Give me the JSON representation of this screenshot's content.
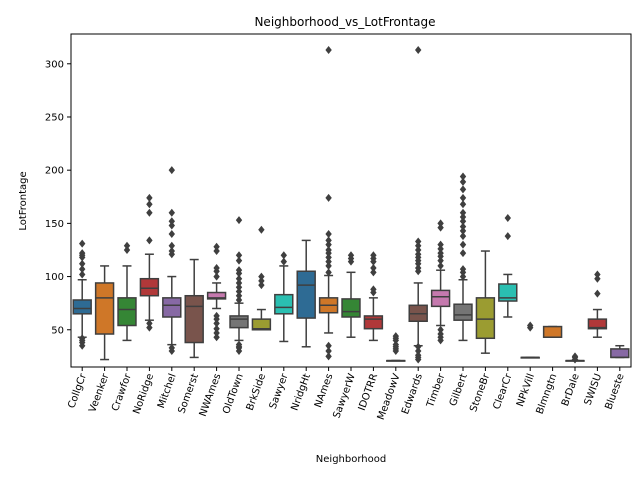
{
  "chart_data": {
    "type": "boxplot",
    "title": "Neighborhood_vs_LotFrontage",
    "xlabel": "Neighborhood",
    "ylabel": "LotFrontage",
    "ylim": [
      15,
      328
    ],
    "yticks": [
      50,
      100,
      150,
      200,
      250,
      300
    ],
    "grid": false,
    "legend": "none",
    "categories": [
      {
        "name": "CollgCr",
        "color": "#3274a1",
        "min": 43,
        "q1": 65,
        "median": 70,
        "q3": 78,
        "max": 97,
        "outliers": [
          35,
          38,
          40,
          42,
          102,
          107,
          112,
          118,
          120,
          122,
          131
        ]
      },
      {
        "name": "Veenker",
        "color": "#e1812c",
        "min": 22,
        "q1": 46,
        "median": 80,
        "q3": 94,
        "max": 110,
        "outliers": []
      },
      {
        "name": "Crawfor",
        "color": "#3a923a",
        "min": 40,
        "q1": 54,
        "median": 69,
        "q3": 80,
        "max": 110,
        "outliers": [
          125,
          129
        ]
      },
      {
        "name": "NoRidge",
        "color": "#c03d3e",
        "min": 59,
        "q1": 82,
        "median": 89,
        "q3": 98,
        "max": 121,
        "outliers": [
          52,
          56,
          134,
          160,
          168,
          174
        ]
      },
      {
        "name": "Mitchel",
        "color": "#9372b2",
        "min": 36,
        "q1": 62,
        "median": 73,
        "q3": 80,
        "max": 100,
        "outliers": [
          30,
          33,
          121,
          124,
          129,
          140,
          148,
          152,
          160,
          200
        ]
      },
      {
        "name": "Somerst",
        "color": "#845b53",
        "min": 24,
        "q1": 38,
        "median": 72,
        "q3": 82,
        "max": 116,
        "outliers": []
      },
      {
        "name": "NWAmes",
        "color": "#d684bd",
        "min": 70,
        "q1": 79,
        "median": 80,
        "q3": 85,
        "max": 94,
        "outliers": [
          43,
          47,
          51,
          56,
          60,
          63,
          100,
          105,
          108,
          124,
          128
        ]
      },
      {
        "name": "OldTown",
        "color": "#7f7f7f",
        "min": 40,
        "q1": 52,
        "median": 60,
        "q3": 63,
        "max": 75,
        "outliers": [
          30,
          33,
          34,
          36,
          78,
          82,
          86,
          90,
          94,
          98,
          103,
          106,
          115,
          120,
          153
        ]
      },
      {
        "name": "BrkSide",
        "color": "#a9aa35",
        "min": 50,
        "q1": 50,
        "median": 51,
        "q3": 60,
        "max": 69,
        "outliers": [
          92,
          96,
          100,
          144
        ]
      },
      {
        "name": "Sawyer",
        "color": "#2ed0c0",
        "min": 39,
        "q1": 65,
        "median": 71,
        "q3": 83,
        "max": 110,
        "outliers": [
          114,
          120
        ]
      },
      {
        "name": "NridgHt",
        "color": "#3274a1",
        "min": 34,
        "q1": 61,
        "median": 92,
        "q3": 105,
        "max": 134,
        "outliers": []
      },
      {
        "name": "NAmes",
        "color": "#e1812c",
        "min": 47,
        "q1": 66,
        "median": 73,
        "q3": 80,
        "max": 101,
        "outliers": [
          25,
          30,
          35,
          104,
          110,
          114,
          118,
          122,
          125,
          130,
          134,
          140,
          174,
          313
        ]
      },
      {
        "name": "SawyerW",
        "color": "#3a923a",
        "min": 43,
        "q1": 62,
        "median": 67,
        "q3": 79,
        "max": 104,
        "outliers": [
          114,
          117,
          120
        ]
      },
      {
        "name": "IDOTRR",
        "color": "#c03d3e",
        "min": 40,
        "q1": 51,
        "median": 60,
        "q3": 63,
        "max": 80,
        "outliers": [
          85,
          88,
          104,
          108,
          114,
          117,
          120
        ]
      },
      {
        "name": "MeadowV",
        "color": "#9372b2",
        "min": 21,
        "q1": 21,
        "median": 21,
        "q3": 21,
        "max": 21,
        "outliers": [
          30,
          32,
          34,
          36,
          40,
          42,
          44
        ]
      },
      {
        "name": "Edwards",
        "color": "#845b53",
        "min": 35,
        "q1": 58,
        "median": 65,
        "q3": 73,
        "max": 94,
        "outliers": [
          22,
          24,
          26,
          30,
          34,
          105,
          108,
          112,
          115,
          118,
          121,
          125,
          129,
          133,
          313
        ]
      },
      {
        "name": "Timber",
        "color": "#d684bd",
        "min": 54,
        "q1": 72,
        "median": 81,
        "q3": 87,
        "max": 106,
        "outliers": [
          40,
          43,
          46,
          50,
          110,
          115,
          119,
          122,
          126,
          130,
          146,
          150
        ]
      },
      {
        "name": "Gilbert",
        "color": "#7f7f7f",
        "min": 40,
        "q1": 59,
        "median": 64,
        "q3": 74,
        "max": 97,
        "outliers": [
          100,
          104,
          107,
          122,
          130,
          138,
          143,
          147,
          152,
          156,
          160,
          168,
          174,
          182,
          189,
          194
        ]
      },
      {
        "name": "StoneBr",
        "color": "#a9aa35",
        "min": 28,
        "q1": 42,
        "median": 60,
        "q3": 80,
        "max": 124,
        "outliers": []
      },
      {
        "name": "ClearCr",
        "color": "#2ed0c0",
        "min": 62,
        "q1": 77,
        "median": 80,
        "q3": 93,
        "max": 102,
        "outliers": [
          138,
          155
        ]
      },
      {
        "name": "NPkVill",
        "color": "#3274a1",
        "min": 24,
        "q1": 24,
        "median": 24,
        "q3": 24,
        "max": 24,
        "outliers": [
          52,
          54
        ]
      },
      {
        "name": "Blmngtn",
        "color": "#e1812c",
        "min": 43,
        "q1": 43,
        "median": 43,
        "q3": 53,
        "max": 53,
        "outliers": []
      },
      {
        "name": "BrDale",
        "color": "#3a923a",
        "min": 21,
        "q1": 21,
        "median": 21,
        "q3": 21,
        "max": 21,
        "outliers": [
          22,
          24,
          25
        ]
      },
      {
        "name": "SWISU",
        "color": "#c03d3e",
        "min": 43,
        "q1": 51,
        "median": 52,
        "q3": 60,
        "max": 69,
        "outliers": [
          84,
          98,
          102
        ]
      },
      {
        "name": "Blueste",
        "color": "#9372b2",
        "min": 24,
        "q1": 24,
        "median": 24,
        "q3": 32,
        "max": 35,
        "outliers": []
      }
    ]
  }
}
